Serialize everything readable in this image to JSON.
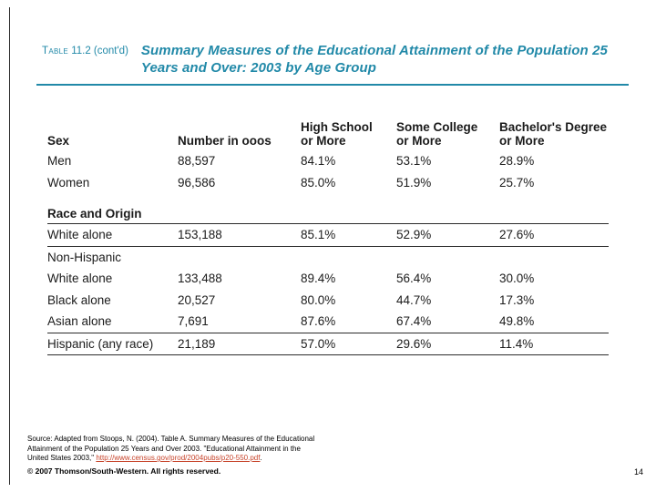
{
  "colors": {
    "accent_teal": "#2189a8",
    "link_red": "#c7432a",
    "text_dark": "#1b1b1b"
  },
  "header": {
    "label_smallcaps": "Table",
    "label_rest": "11.2 (cont'd)",
    "title_line1": "Summary Measures of the Educational Attainment of the Population 25",
    "title_line2": "Years and Over: 2003 by Age Group"
  },
  "table": {
    "header": {
      "col_sex": "Sex",
      "col_number": "Number in ooos",
      "col_hs_line1": "High School",
      "col_hs_line2": "or More",
      "col_sc_line1": "Some College",
      "col_sc_line2": "or More",
      "col_bd_line1": "Bachelor's Degree",
      "col_bd_line2": "or More"
    },
    "section_race": "Race and Origin",
    "rows": [
      {
        "label": "Men",
        "num": "88,597",
        "hs": "84.1%",
        "sc": "53.1%",
        "bd": "28.9%"
      },
      {
        "label": "Women",
        "num": "96,586",
        "hs": "85.0%",
        "sc": "51.9%",
        "bd": "25.7%"
      },
      {
        "label": "White alone",
        "num": "153,188",
        "hs": "85.1%",
        "sc": "52.9%",
        "bd": "27.6%"
      },
      {
        "label": "Non-Hispanic",
        "num": "",
        "hs": "",
        "sc": "",
        "bd": ""
      },
      {
        "label": "White alone",
        "num": "133,488",
        "hs": "89.4%",
        "sc": "56.4%",
        "bd": "30.0%"
      },
      {
        "label": "Black alone",
        "num": "20,527",
        "hs": "80.0%",
        "sc": "44.7%",
        "bd": "17.3%"
      },
      {
        "label": "Asian alone",
        "num": "7,691",
        "hs": "87.6%",
        "sc": "67.4%",
        "bd": "49.8%"
      },
      {
        "label": "Hispanic (any race)",
        "num": "21,189",
        "hs": "57.0%",
        "sc": "29.6%",
        "bd": "11.4%"
      }
    ]
  },
  "footer": {
    "source_line1": "Source: Adapted from Stoops, N. (2004). Table A. Summary Measures of the Educational",
    "source_line2": "Attainment of the Population 25 Years and Over 2003. \"Educational Attainment in the",
    "source_line3_prefix": "United States 2003,\" ",
    "source_link": "http://www.census.gov/prod/2004pubs/p20-550.pdf",
    "source_line3_suffix": ".",
    "copyright": "© 2007 Thomson/South-Western. All rights reserved.",
    "page_number": "14"
  }
}
